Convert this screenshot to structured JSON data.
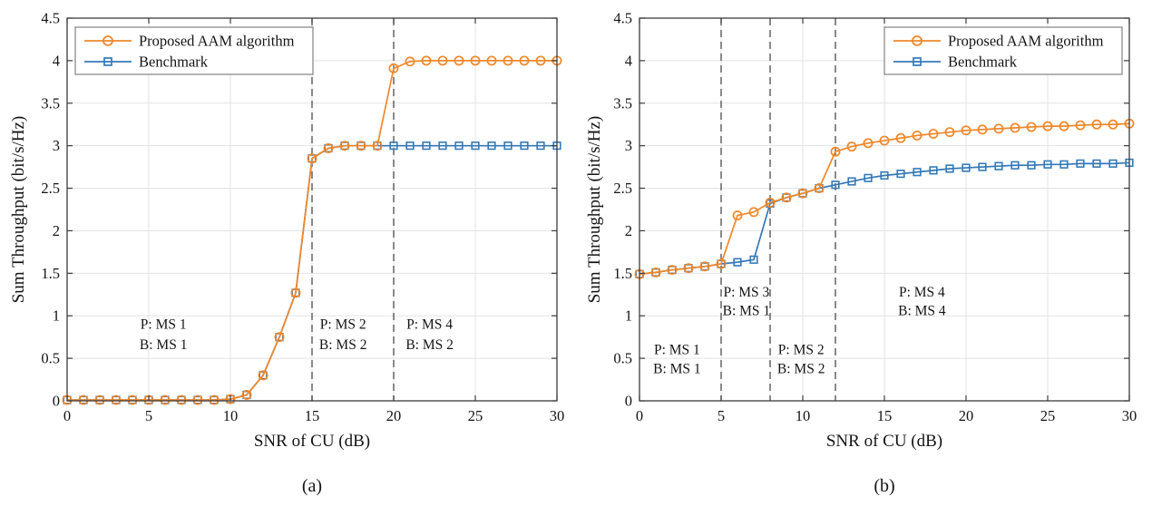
{
  "styles": {
    "background": "#ffffff",
    "axis_color": "#3c3c3c",
    "grid_color": "#e3e3e3",
    "dashed_line_color": "#4a4a4a",
    "text_color": "#141414",
    "legend_border_color": "#828282",
    "legend_fill": "#ffffff",
    "proposed_color": "#f0872a",
    "benchmark_color": "#3579b8"
  },
  "chart_data": [
    {
      "type": "line",
      "id": "a",
      "caption": "(a)",
      "xlabel": "SNR of CU (dB)",
      "ylabel": "Sum Throughput (bit/s/Hz)",
      "xlim": [
        0,
        30
      ],
      "ylim": [
        0,
        4.5
      ],
      "grid": true,
      "xticks": [
        0,
        5,
        10,
        15,
        20,
        25,
        30
      ],
      "xtick_labels": [
        "0",
        "5",
        "10",
        "15",
        "20",
        "25",
        "30"
      ],
      "yticks": [
        0,
        0.5,
        1,
        1.5,
        2,
        2.5,
        3,
        3.5,
        4,
        4.5
      ],
      "ytick_labels": [
        "0",
        "0.5",
        "1",
        "1.5",
        "2",
        "2.5",
        "3",
        "3.5",
        "4",
        "4.5"
      ],
      "legend_position": "top-left",
      "x": [
        0,
        1,
        2,
        3,
        4,
        5,
        6,
        7,
        8,
        9,
        10,
        11,
        12,
        13,
        14,
        15,
        16,
        17,
        18,
        19,
        20,
        21,
        22,
        23,
        24,
        25,
        26,
        27,
        28,
        29,
        30
      ],
      "series": [
        {
          "name": "Proposed AAM algorithm",
          "marker": "circle",
          "color_key": "proposed_color",
          "values": [
            0.01,
            0.01,
            0.01,
            0.01,
            0.01,
            0.01,
            0.01,
            0.01,
            0.01,
            0.01,
            0.02,
            0.07,
            0.3,
            0.75,
            1.27,
            2.85,
            2.97,
            3.0,
            3.0,
            3.0,
            3.91,
            3.99,
            4.0,
            4.0,
            4.0,
            4.0,
            4.0,
            4.0,
            4.0,
            4.0,
            4.0
          ]
        },
        {
          "name": "Benchmark",
          "marker": "square",
          "color_key": "benchmark_color",
          "values": [
            0.01,
            0.01,
            0.01,
            0.01,
            0.01,
            0.01,
            0.01,
            0.01,
            0.01,
            0.01,
            0.02,
            0.07,
            0.3,
            0.75,
            1.27,
            2.85,
            2.97,
            3.0,
            3.0,
            3.0,
            3.0,
            3.0,
            3.0,
            3.0,
            3.0,
            3.0,
            3.0,
            3.0,
            3.0,
            3.0,
            3.0
          ]
        }
      ],
      "vlines": [
        15,
        20
      ],
      "annotations": [
        {
          "x": 5.9,
          "lines": [
            {
              "text": "P: MS 1",
              "y": 0.9
            },
            {
              "text": "B: MS 1",
              "y": 0.66
            }
          ]
        },
        {
          "x": 16.9,
          "lines": [
            {
              "text": "P: MS 2",
              "y": 0.9
            },
            {
              "text": "B: MS 2",
              "y": 0.66
            }
          ]
        },
        {
          "x": 22.2,
          "lines": [
            {
              "text": "P: MS 4",
              "y": 0.9
            },
            {
              "text": "B: MS 2",
              "y": 0.66
            }
          ]
        }
      ]
    },
    {
      "type": "line",
      "id": "b",
      "caption": "(b)",
      "xlabel": "SNR of CU (dB)",
      "ylabel": "Sum Throughput (bit/s/Hz)",
      "xlim": [
        0,
        30
      ],
      "ylim": [
        0,
        4.5
      ],
      "grid": true,
      "xticks": [
        0,
        5,
        10,
        15,
        20,
        25,
        30
      ],
      "xtick_labels": [
        "0",
        "5",
        "10",
        "15",
        "20",
        "25",
        "30"
      ],
      "yticks": [
        0,
        0.5,
        1,
        1.5,
        2,
        2.5,
        3,
        3.5,
        4,
        4.5
      ],
      "ytick_labels": [
        "0",
        "0.5",
        "1",
        "1.5",
        "2",
        "2.5",
        "3",
        "3.5",
        "4",
        "4.5"
      ],
      "legend_position": "top-right",
      "x": [
        0,
        1,
        2,
        3,
        4,
        5,
        6,
        7,
        8,
        9,
        10,
        11,
        12,
        13,
        14,
        15,
        16,
        17,
        18,
        19,
        20,
        21,
        22,
        23,
        24,
        25,
        26,
        27,
        28,
        29,
        30
      ],
      "series": [
        {
          "name": "Proposed AAM algorithm",
          "marker": "circle",
          "color_key": "proposed_color",
          "values": [
            1.49,
            1.51,
            1.54,
            1.56,
            1.58,
            1.61,
            2.18,
            2.22,
            2.33,
            2.39,
            2.44,
            2.5,
            2.93,
            2.99,
            3.03,
            3.06,
            3.09,
            3.12,
            3.14,
            3.16,
            3.18,
            3.19,
            3.2,
            3.21,
            3.22,
            3.23,
            3.23,
            3.24,
            3.25,
            3.25,
            3.26
          ]
        },
        {
          "name": "Benchmark",
          "marker": "square",
          "color_key": "benchmark_color",
          "values": [
            1.49,
            1.51,
            1.54,
            1.56,
            1.58,
            1.61,
            1.63,
            1.66,
            2.32,
            2.39,
            2.44,
            2.5,
            2.54,
            2.58,
            2.62,
            2.65,
            2.67,
            2.69,
            2.71,
            2.73,
            2.74,
            2.75,
            2.76,
            2.77,
            2.77,
            2.78,
            2.78,
            2.79,
            2.79,
            2.79,
            2.8
          ]
        }
      ],
      "vlines": [
        5,
        8,
        12
      ],
      "annotations": [
        {
          "x": 2.3,
          "lines": [
            {
              "text": "P: MS 1",
              "y": 0.6
            },
            {
              "text": "B: MS 1",
              "y": 0.38
            }
          ]
        },
        {
          "x": 6.55,
          "lines": [
            {
              "text": "P: MS 3",
              "y": 1.28
            },
            {
              "text": "B: MS 1",
              "y": 1.06
            }
          ]
        },
        {
          "x": 9.9,
          "lines": [
            {
              "text": "P: MS 2",
              "y": 0.6
            },
            {
              "text": "B: MS 2",
              "y": 0.38
            }
          ]
        },
        {
          "x": 17.3,
          "lines": [
            {
              "text": "P: MS 4",
              "y": 1.28
            },
            {
              "text": "B: MS 4",
              "y": 1.06
            }
          ]
        }
      ]
    }
  ]
}
